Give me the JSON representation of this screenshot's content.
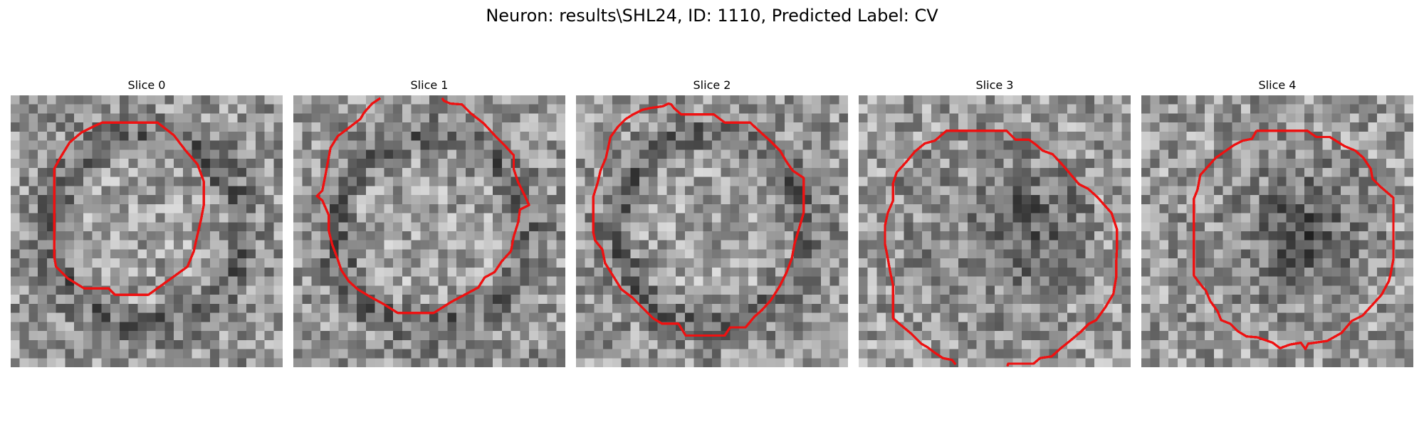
{
  "figure": {
    "title": "Neuron: results\\SHL24, ID: 1110, Predicted Label: CV"
  },
  "colors": {
    "contour": "#ee1111",
    "background": "#ffffff"
  },
  "panels": [
    {
      "label": "Slice 0",
      "contrast": "bright-center"
    },
    {
      "label": "Slice 1",
      "contrast": "bright-center"
    },
    {
      "label": "Slice 2",
      "contrast": "bright-center"
    },
    {
      "label": "Slice 3",
      "contrast": "dark-center"
    },
    {
      "label": "Slice 4",
      "contrast": "dark-center"
    }
  ]
}
